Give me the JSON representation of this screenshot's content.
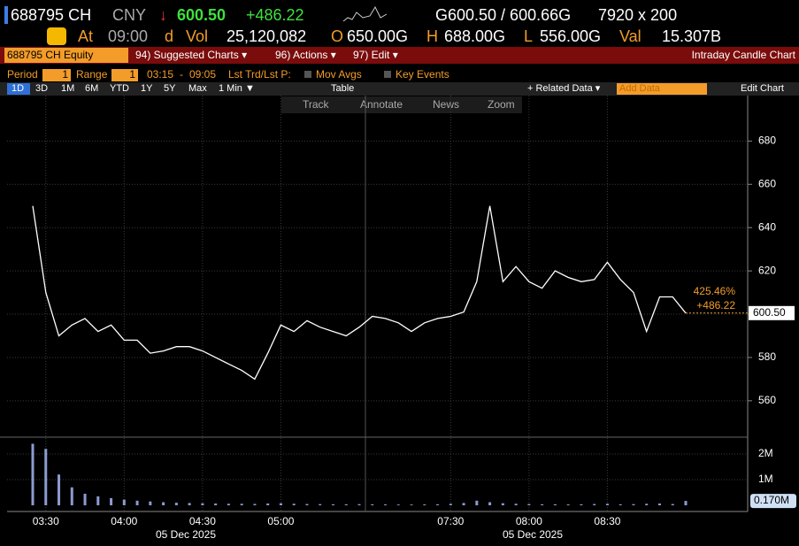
{
  "header": {
    "ticker": "688795 CH",
    "currency": "CNY",
    "arrow": "↓",
    "last": "600.50",
    "change": "+486.22",
    "bid_ask": "G600.50 / 600.66G",
    "size": "7920 x 200"
  },
  "quote": {
    "at": "At",
    "time": "09:00",
    "d": "d",
    "vol_label": "Vol",
    "vol": "25,120,082",
    "open_label": "O",
    "open": "650.00G",
    "high_label": "H",
    "high": "688.00G",
    "low_label": "L",
    "low": "556.00G",
    "val_label": "Val",
    "val": "15.307B"
  },
  "toolbar": {
    "security": "688795 CH Equity",
    "items": [
      "94) Suggested Charts ▾",
      "96) Actions ▾",
      "97) Edit ▾"
    ],
    "title": "Intraday Candle Chart"
  },
  "options": {
    "period_label": "Period",
    "period": "1",
    "range_label": "Range",
    "range": "1",
    "from": "03:15",
    "dash": "-",
    "to": "09:05",
    "mode": "Lst Trd/Lst P:",
    "mov_avgs": "Mov Avgs",
    "key_events": "Key Events"
  },
  "buttons": {
    "ranges": [
      "1D",
      "3D",
      "1M",
      "6M",
      "YTD",
      "1Y",
      "5Y",
      "Max",
      "1 Min ▼"
    ],
    "table": "Table",
    "related": "+ Related Data ▾",
    "add": "Add Data",
    "edit": "Edit Chart"
  },
  "tools": [
    "Track",
    "Annotate",
    "News",
    "Zoom"
  ],
  "chart_data": [
    {
      "type": "line",
      "color": "#ffffff",
      "categories": [
        null,
        "03:30",
        null,
        null,
        null,
        null,
        null,
        "04:00",
        null,
        null,
        null,
        null,
        null,
        "04:30",
        null,
        null,
        null,
        null,
        null,
        "05:00",
        null,
        null,
        null,
        null,
        null,
        null,
        null,
        null,
        null,
        null,
        null,
        null,
        "07:30",
        null,
        null,
        null,
        null,
        null,
        "08:00",
        null,
        null,
        null,
        null,
        null,
        "08:30",
        null,
        null,
        null,
        null,
        null,
        null
      ],
      "values": [
        650,
        610,
        590,
        595,
        598,
        592,
        595,
        588,
        588,
        582,
        583,
        585,
        585,
        583,
        580,
        577,
        574,
        570,
        582,
        595,
        592,
        597,
        594,
        592,
        590,
        594,
        599,
        598,
        596,
        592,
        596,
        598,
        599,
        601,
        615,
        650,
        615,
        622,
        615,
        612,
        620,
        617,
        615,
        616,
        624,
        616,
        610,
        592,
        608,
        608,
        600.5
      ],
      "ylim": [
        544,
        701
      ],
      "yticks": [
        560,
        580,
        600,
        620,
        640,
        660,
        680
      ],
      "grid": true,
      "x_dates": [
        "05 Dec 2025",
        "05 Dec 2025"
      ],
      "last_value": {
        "value": 600.5,
        "label": "600.50"
      },
      "annotations": [
        "425.46%",
        "+486.22"
      ]
    },
    {
      "type": "bar",
      "color": "#8c9bd0",
      "values": [
        2400000,
        2200000,
        1200000,
        700000,
        450000,
        350000,
        280000,
        220000,
        180000,
        150000,
        120000,
        100000,
        90000,
        80000,
        70000,
        60000,
        60000,
        55000,
        70000,
        80000,
        60000,
        50000,
        45000,
        40000,
        40000,
        45000,
        40000,
        35000,
        30000,
        30000,
        35000,
        40000,
        60000,
        90000,
        180000,
        120000,
        80000,
        60000,
        50000,
        40000,
        40000,
        35000,
        40000,
        50000,
        60000,
        40000,
        45000,
        60000,
        70000,
        50000,
        170000
      ],
      "ylim": [
        0,
        2450000
      ],
      "yticks": [
        {
          "value": 1000000,
          "label": "1M"
        },
        {
          "value": 2000000,
          "label": "2M"
        }
      ],
      "last_value": {
        "value": 170000,
        "label": "0.170M"
      }
    }
  ]
}
